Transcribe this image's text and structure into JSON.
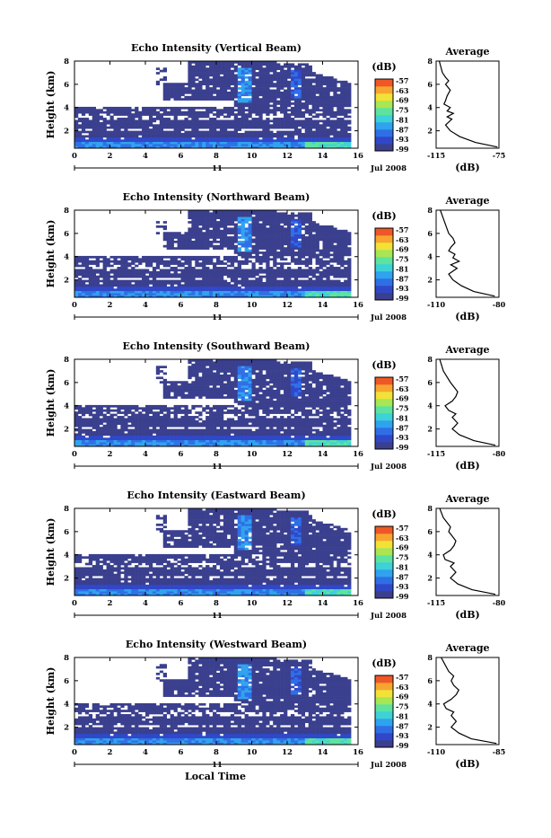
{
  "chart_data": [
    {
      "type": "heatmap",
      "title": "Echo Intensity (Vertical Beam)",
      "ylabel": "Height (km)",
      "xlabel": "",
      "x_ticks": [
        "0",
        "2",
        "4",
        "6",
        "8",
        "10",
        "12",
        "14",
        "16"
      ],
      "y_ticks": [
        "2",
        "4",
        "6",
        "8"
      ],
      "xlim": [
        0,
        16
      ],
      "ylim": [
        0.5,
        8
      ],
      "day_label": "11",
      "month_label": "Jul 2008",
      "colorbar": {
        "unit": "(dB)",
        "ticks": [
          "-57",
          "-63",
          "-69",
          "-75",
          "-81",
          "-87",
          "-93",
          "-99"
        ]
      },
      "profile": {
        "title": "Average",
        "xlabel": "(dB)",
        "x_ticks": [
          "-115",
          "-75"
        ],
        "y_ticks": [
          "2",
          "4",
          "6",
          "8"
        ],
        "xlim": [
          -115,
          -75
        ],
        "height": [
          0.6,
          1.0,
          1.5,
          2.0,
          2.5,
          3.0,
          3.2,
          3.5,
          3.7,
          4.0,
          4.3,
          4.6,
          5.0,
          5.5,
          6.0,
          6.3,
          6.6,
          7.0,
          7.5,
          8.0
        ],
        "value": [
          -76,
          -90,
          -100,
          -106,
          -109,
          -105,
          -108,
          -104,
          -108,
          -106,
          -110,
          -109,
          -108,
          -106,
          -109,
          -107,
          -109,
          -111,
          -112,
          -113
        ]
      }
    },
    {
      "type": "heatmap",
      "title": "Echo Intensity (Northward Beam)",
      "ylabel": "Height (km)",
      "xlabel": "",
      "x_ticks": [
        "0",
        "2",
        "4",
        "6",
        "8",
        "10",
        "12",
        "14",
        "16"
      ],
      "y_ticks": [
        "2",
        "4",
        "6",
        "8"
      ],
      "xlim": [
        0,
        16
      ],
      "ylim": [
        0.5,
        8
      ],
      "day_label": "11",
      "month_label": "Jul 2008",
      "colorbar": {
        "unit": "(dB)",
        "ticks": [
          "-57",
          "-63",
          "-69",
          "-75",
          "-81",
          "-87",
          "-93",
          "-99"
        ]
      },
      "profile": {
        "title": "Average",
        "xlabel": "(dB)",
        "x_ticks": [
          "-110",
          "-80"
        ],
        "y_ticks": [
          "2",
          "4",
          "6",
          "8"
        ],
        "xlim": [
          -110,
          -80
        ],
        "height": [
          0.6,
          1.0,
          1.5,
          2.0,
          2.5,
          3.0,
          3.3,
          3.6,
          3.9,
          4.2,
          4.5,
          4.8,
          5.2,
          5.6,
          6.0,
          6.5,
          7.0,
          7.5,
          8.0
        ],
        "value": [
          -82,
          -92,
          -98,
          -102,
          -104,
          -100,
          -103,
          -99,
          -102,
          -101,
          -104,
          -103,
          -101,
          -102,
          -104,
          -105,
          -106,
          -107,
          -108
        ]
      }
    },
    {
      "type": "heatmap",
      "title": "Echo Intensity (Southward Beam)",
      "ylabel": "Height (km)",
      "xlabel": "",
      "x_ticks": [
        "0",
        "2",
        "4",
        "6",
        "8",
        "10",
        "12",
        "14",
        "16"
      ],
      "y_ticks": [
        "2",
        "4",
        "6",
        "8"
      ],
      "xlim": [
        0,
        16
      ],
      "ylim": [
        0.5,
        8
      ],
      "day_label": "11",
      "month_label": "Jul 2008",
      "colorbar": {
        "unit": "(dB)",
        "ticks": [
          "-57",
          "-63",
          "-69",
          "-75",
          "-81",
          "-87",
          "-93",
          "-99"
        ]
      },
      "profile": {
        "title": "Average",
        "xlabel": "(dB)",
        "x_ticks": [
          "-115",
          "-80"
        ],
        "y_ticks": [
          "2",
          "4",
          "6",
          "8"
        ],
        "xlim": [
          -115,
          -80
        ],
        "height": [
          0.6,
          1.0,
          1.5,
          2.0,
          2.5,
          3.0,
          3.3,
          3.6,
          4.0,
          4.4,
          4.8,
          5.2,
          5.6,
          6.0,
          6.5,
          7.0,
          7.5,
          8.0
        ],
        "value": [
          -82,
          -94,
          -102,
          -106,
          -103,
          -106,
          -104,
          -108,
          -110,
          -106,
          -104,
          -103,
          -105,
          -107,
          -109,
          -111,
          -112,
          -113
        ]
      }
    },
    {
      "type": "heatmap",
      "title": "Echo Intensity (Eastward Beam)",
      "ylabel": "Height (km)",
      "xlabel": "",
      "x_ticks": [
        "0",
        "2",
        "4",
        "6",
        "8",
        "10",
        "12",
        "14",
        "16"
      ],
      "y_ticks": [
        "2",
        "4",
        "6",
        "8"
      ],
      "xlim": [
        0,
        16
      ],
      "ylim": [
        0.5,
        8
      ],
      "day_label": "11",
      "month_label": "Jul 2008",
      "colorbar": {
        "unit": "(dB)",
        "ticks": [
          "-57",
          "-63",
          "-69",
          "-75",
          "-81",
          "-87",
          "-93",
          "-99"
        ]
      },
      "profile": {
        "title": "Average",
        "xlabel": "(dB)",
        "x_ticks": [
          "-115",
          "-80"
        ],
        "y_ticks": [
          "2",
          "4",
          "6",
          "8"
        ],
        "xlim": [
          -115,
          -80
        ],
        "height": [
          0.6,
          1.0,
          1.5,
          2.0,
          2.5,
          3.0,
          3.3,
          3.6,
          4.0,
          4.4,
          4.8,
          5.2,
          5.6,
          6.0,
          6.4,
          6.8,
          7.2,
          7.6,
          8.0
        ],
        "value": [
          -82,
          -95,
          -103,
          -107,
          -104,
          -107,
          -105,
          -110,
          -111,
          -107,
          -105,
          -104,
          -106,
          -108,
          -107,
          -109,
          -111,
          -112,
          -113
        ]
      }
    },
    {
      "type": "heatmap",
      "title": "Echo Intensity (Westward Beam)",
      "ylabel": "Height (km)",
      "xlabel": "Local Time",
      "x_ticks": [
        "0",
        "2",
        "4",
        "6",
        "8",
        "10",
        "12",
        "14",
        "16"
      ],
      "y_ticks": [
        "2",
        "4",
        "6",
        "8"
      ],
      "xlim": [
        0,
        16
      ],
      "ylim": [
        0.5,
        8
      ],
      "day_label": "11",
      "month_label": "Jul 2008",
      "colorbar": {
        "unit": "(dB)",
        "ticks": [
          "-57",
          "-63",
          "-69",
          "-75",
          "-81",
          "-87",
          "-93",
          "-99"
        ]
      },
      "profile": {
        "title": "Average",
        "xlabel": "(dB)",
        "x_ticks": [
          "-110",
          "-85"
        ],
        "y_ticks": [
          "2",
          "4",
          "6",
          "8"
        ],
        "xlim": [
          -110,
          -85
        ],
        "height": [
          0.6,
          1.0,
          1.5,
          2.0,
          2.5,
          3.0,
          3.3,
          3.6,
          4.0,
          4.4,
          4.8,
          5.2,
          5.6,
          6.0,
          6.4,
          6.8,
          7.2,
          7.6,
          8.0
        ],
        "value": [
          -86,
          -96,
          -101,
          -104,
          -102,
          -104,
          -103,
          -106,
          -107,
          -104,
          -102,
          -101,
          -103,
          -104,
          -103,
          -105,
          -106,
          -107,
          -108
        ]
      }
    }
  ],
  "colors": {
    "palette": [
      "#3a3f8e",
      "#3048c8",
      "#2f6fe6",
      "#2fa3ee",
      "#3dd1d8",
      "#5de39f",
      "#a8e653",
      "#f1e237",
      "#f8a530",
      "#ee5826"
    ],
    "background_echo": "#3a3f8e"
  }
}
